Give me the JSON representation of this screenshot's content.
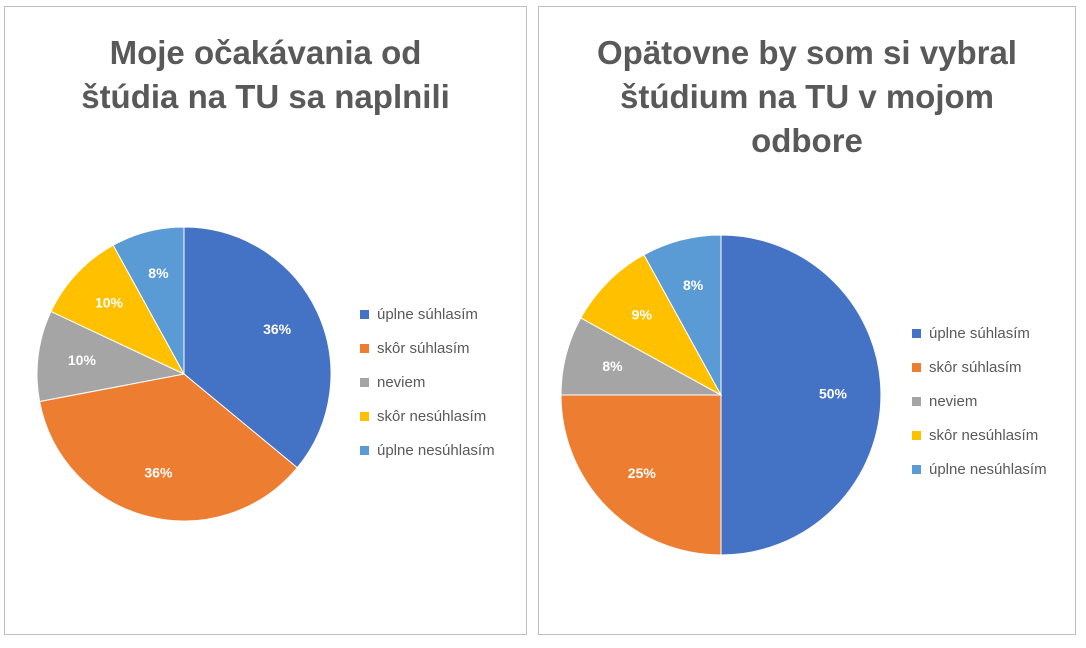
{
  "colors": {
    "uplne_suhlasim": "#4472C4",
    "skor_suhlasim": "#ED7D31",
    "neviem": "#A5A5A5",
    "skor_nesuhlasim": "#FFC000",
    "uplne_nesuhlasim": "#5B9BD5"
  },
  "chart_data": [
    {
      "type": "pie",
      "title": "Moje očakávania od štúdia na TU sa naplnili",
      "categories": [
        "úplne súhlasím",
        "skôr súhlasím",
        "neviem",
        "skôr nesúhlasím",
        "úplne nesúhlasím"
      ],
      "values": [
        36,
        36,
        10,
        10,
        8
      ],
      "labels": [
        "36%",
        "36%",
        "10%",
        "10%",
        "8%"
      ],
      "colors": [
        "#4472C4",
        "#ED7D31",
        "#A5A5A5",
        "#FFC000",
        "#5B9BD5"
      ],
      "legend": "right"
    },
    {
      "type": "pie",
      "title": "Opätovne by som si vybral štúdium na TU v mojom odbore",
      "categories": [
        "úplne súhlasím",
        "skôr súhlasím",
        "neviem",
        "skôr nesúhlasím",
        "úplne nesúhlasím"
      ],
      "values": [
        50,
        25,
        8,
        9,
        8
      ],
      "labels": [
        "50%",
        "25%",
        "8%",
        "9%",
        "8%"
      ],
      "colors": [
        "#4472C4",
        "#ED7D31",
        "#A5A5A5",
        "#FFC000",
        "#5B9BD5"
      ],
      "legend": "right"
    }
  ]
}
